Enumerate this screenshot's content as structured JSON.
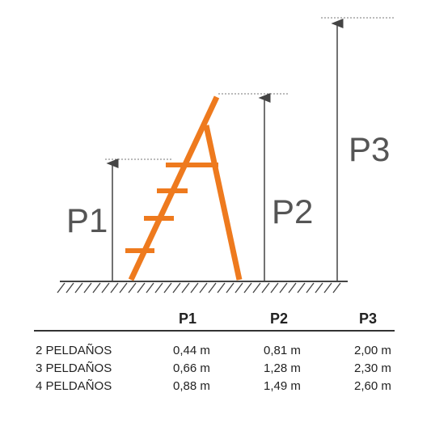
{
  "diagram": {
    "labels": [
      "P1",
      "P2",
      "P3"
    ],
    "colors": {
      "ladder": "#ee7a1e",
      "lines": "#444444",
      "dotted": "#777777"
    }
  },
  "table": {
    "headers": [
      "P1",
      "P2",
      "P3"
    ],
    "rows": [
      {
        "name": "2 PELDAÑOS",
        "p1": "0,44 m",
        "p2": "0,81 m",
        "p3": "2,00 m"
      },
      {
        "name": "3 PELDAÑOS",
        "p1": "0,66 m",
        "p2": "1,28 m",
        "p3": "2,30 m"
      },
      {
        "name": "4 PELDAÑOS",
        "p1": "0,88 m",
        "p2": "1,49 m",
        "p3": "2,60 m"
      }
    ]
  }
}
